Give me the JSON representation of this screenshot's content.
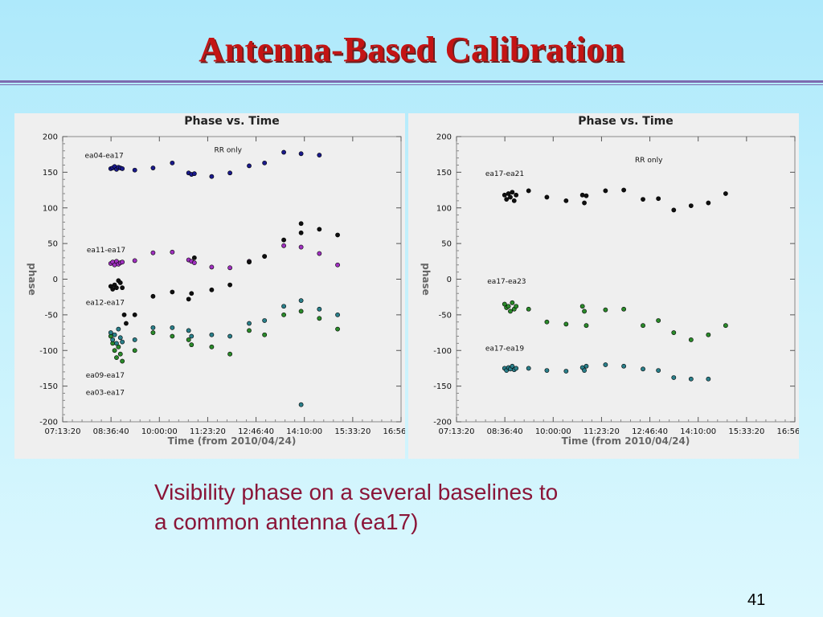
{
  "slide": {
    "title": "Antenna-Based Calibration",
    "caption": "Visibility phase on a several baselines to a common antenna (ea17)",
    "page_number": "41"
  },
  "chart_data": [
    {
      "type": "scatter",
      "title": "Phase vs. Time",
      "xlabel": "Time (from 2010/04/24)",
      "ylabel": "phase",
      "annotation": "RR only",
      "xlim": [
        0,
        35200
      ],
      "ylim": [
        -200,
        200
      ],
      "x_ticks": [
        "07:13:20",
        "08:36:40",
        "10:00:00",
        "11:23:20",
        "12:46:40",
        "14:10:00",
        "15:33:20",
        "16:56:40"
      ],
      "y_ticks": [
        200,
        150,
        100,
        50,
        0,
        -50,
        -100,
        -150,
        -200
      ],
      "series": [
        {
          "name": "ea04-ea17",
          "color": "#1a1a8c",
          "points": [
            [
              5000,
              155
            ],
            [
              5200,
              156
            ],
            [
              5400,
              158
            ],
            [
              5600,
              154
            ],
            [
              5800,
              157
            ],
            [
              6000,
              156
            ],
            [
              6200,
              155
            ],
            [
              7500,
              153
            ],
            [
              9400,
              156
            ],
            [
              11400,
              163
            ],
            [
              13100,
              149
            ],
            [
              13400,
              147
            ],
            [
              13700,
              148
            ],
            [
              15500,
              144
            ],
            [
              17400,
              149
            ],
            [
              19400,
              159
            ],
            [
              21000,
              163
            ],
            [
              23000,
              178
            ],
            [
              24800,
              176
            ],
            [
              26700,
              174
            ]
          ]
        },
        {
          "name": "ea11-ea17",
          "color": "#a030c0",
          "points": [
            [
              5000,
              22
            ],
            [
              5200,
              24
            ],
            [
              5400,
              20
            ],
            [
              5600,
              25
            ],
            [
              5800,
              21
            ],
            [
              6000,
              23
            ],
            [
              6200,
              24
            ],
            [
              7500,
              26
            ],
            [
              9400,
              37
            ],
            [
              11400,
              38
            ],
            [
              13100,
              27
            ],
            [
              13400,
              25
            ],
            [
              13700,
              23
            ],
            [
              15500,
              17
            ],
            [
              17400,
              16
            ],
            [
              19400,
              25
            ],
            [
              21000,
              32
            ],
            [
              23000,
              47
            ],
            [
              24800,
              45
            ],
            [
              26700,
              36
            ],
            [
              28600,
              20
            ]
          ]
        },
        {
          "name": "ea12-ea17",
          "color": "#101010",
          "points": [
            [
              5000,
              -10
            ],
            [
              5200,
              -14
            ],
            [
              5400,
              -8
            ],
            [
              5600,
              -12
            ],
            [
              5800,
              -2
            ],
            [
              6000,
              -5
            ],
            [
              6200,
              -12
            ],
            [
              6400,
              -50
            ],
            [
              6600,
              -62
            ],
            [
              7500,
              -50
            ],
            [
              9400,
              -24
            ],
            [
              11400,
              -18
            ],
            [
              13100,
              -28
            ],
            [
              13400,
              -20
            ],
            [
              13700,
              30
            ],
            [
              15500,
              -15
            ],
            [
              17400,
              -8
            ],
            [
              19400,
              24
            ],
            [
              21000,
              32
            ],
            [
              23000,
              55
            ],
            [
              24800,
              65
            ],
            [
              24800,
              78
            ],
            [
              26700,
              70
            ],
            [
              28600,
              62
            ]
          ]
        },
        {
          "name": "ea09-ea17",
          "color": "#2a8a2a",
          "points": [
            [
              5000,
              -80
            ],
            [
              5200,
              -90
            ],
            [
              5400,
              -100
            ],
            [
              5600,
              -110
            ],
            [
              5800,
              -95
            ],
            [
              6000,
              -105
            ],
            [
              6200,
              -115
            ],
            [
              7500,
              -100
            ],
            [
              9400,
              -75
            ],
            [
              11400,
              -80
            ],
            [
              13100,
              -85
            ],
            [
              13400,
              -92
            ],
            [
              15500,
              -95
            ],
            [
              17400,
              -105
            ],
            [
              19400,
              -72
            ],
            [
              21000,
              -78
            ],
            [
              23000,
              -50
            ],
            [
              24800,
              -45
            ],
            [
              26700,
              -55
            ],
            [
              28600,
              -70
            ]
          ]
        },
        {
          "name": "ea03-ea17",
          "color": "#2a7f8a",
          "points": [
            [
              5000,
              -75
            ],
            [
              5200,
              -85
            ],
            [
              5400,
              -78
            ],
            [
              5600,
              -90
            ],
            [
              5800,
              -70
            ],
            [
              6000,
              -82
            ],
            [
              6200,
              -88
            ],
            [
              7500,
              -85
            ],
            [
              9400,
              -68
            ],
            [
              11400,
              -68
            ],
            [
              13100,
              -72
            ],
            [
              13400,
              -80
            ],
            [
              15500,
              -78
            ],
            [
              17400,
              -80
            ],
            [
              19400,
              -62
            ],
            [
              21000,
              -58
            ],
            [
              23000,
              -38
            ],
            [
              24800,
              -30
            ],
            [
              26700,
              -42
            ],
            [
              28600,
              -50
            ],
            [
              24800,
              -176
            ]
          ]
        }
      ]
    },
    {
      "type": "scatter",
      "title": "Phase vs. Time",
      "xlabel": "Time (from 2010/04/24)",
      "ylabel": "phase",
      "annotation": "RR only",
      "xlim": [
        0,
        35200
      ],
      "ylim": [
        -200,
        200
      ],
      "x_ticks": [
        "07:13:20",
        "08:36:40",
        "10:00:00",
        "11:23:20",
        "12:46:40",
        "14:10:00",
        "15:33:20",
        "16:56:40"
      ],
      "y_ticks": [
        200,
        150,
        100,
        50,
        0,
        -50,
        -100,
        -150,
        -200
      ],
      "series": [
        {
          "name": "ea17-ea21",
          "color": "#101010",
          "points": [
            [
              5000,
              118
            ],
            [
              5200,
              112
            ],
            [
              5400,
              120
            ],
            [
              5600,
              115
            ],
            [
              5800,
              122
            ],
            [
              6000,
              110
            ],
            [
              6200,
              118
            ],
            [
              7500,
              124
            ],
            [
              9400,
              115
            ],
            [
              11400,
              110
            ],
            [
              13100,
              118
            ],
            [
              13300,
              107
            ],
            [
              13500,
              117
            ],
            [
              15500,
              124
            ],
            [
              17400,
              125
            ],
            [
              19400,
              112
            ],
            [
              21000,
              113
            ],
            [
              22600,
              97
            ],
            [
              24400,
              103
            ],
            [
              26200,
              107
            ],
            [
              28000,
              120
            ]
          ]
        },
        {
          "name": "ea17-ea23",
          "color": "#2a8a2a",
          "points": [
            [
              5000,
              -35
            ],
            [
              5200,
              -40
            ],
            [
              5400,
              -38
            ],
            [
              5600,
              -45
            ],
            [
              5800,
              -33
            ],
            [
              6000,
              -42
            ],
            [
              6200,
              -38
            ],
            [
              7500,
              -42
            ],
            [
              9400,
              -60
            ],
            [
              11400,
              -63
            ],
            [
              13100,
              -38
            ],
            [
              13300,
              -45
            ],
            [
              13500,
              -65
            ],
            [
              15500,
              -43
            ],
            [
              17400,
              -42
            ],
            [
              19400,
              -65
            ],
            [
              21000,
              -58
            ],
            [
              22600,
              -75
            ],
            [
              24400,
              -85
            ],
            [
              26200,
              -78
            ],
            [
              28000,
              -65
            ]
          ]
        },
        {
          "name": "ea17-ea19",
          "color": "#2a7f8a",
          "points": [
            [
              5000,
              -125
            ],
            [
              5200,
              -128
            ],
            [
              5400,
              -124
            ],
            [
              5600,
              -126
            ],
            [
              5800,
              -122
            ],
            [
              6000,
              -127
            ],
            [
              6200,
              -125
            ],
            [
              7500,
              -125
            ],
            [
              9400,
              -128
            ],
            [
              11400,
              -129
            ],
            [
              13100,
              -124
            ],
            [
              13300,
              -128
            ],
            [
              13500,
              -122
            ],
            [
              15500,
              -120
            ],
            [
              17400,
              -122
            ],
            [
              19400,
              -126
            ],
            [
              21000,
              -128
            ],
            [
              22600,
              -138
            ],
            [
              24400,
              -140
            ],
            [
              26200,
              -140
            ]
          ]
        }
      ]
    }
  ]
}
